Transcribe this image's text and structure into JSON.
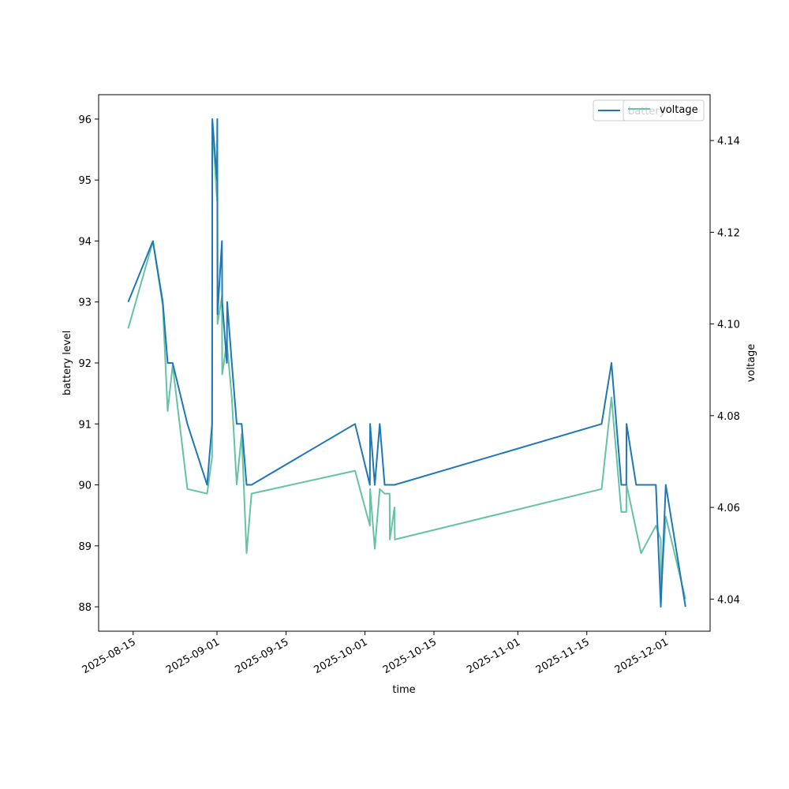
{
  "chart_data": {
    "type": "line",
    "title": "",
    "xlabel": "time",
    "ylabel": "battery level",
    "ylabel_right": "voltage",
    "x_tick_labels": [
      "2025-08-15",
      "2025-09-01",
      "2025-09-15",
      "2025-10-01",
      "2025-10-15",
      "2025-11-01",
      "2025-11-15",
      "2025-12-01"
    ],
    "y_left_ticks": [
      "88",
      "89",
      "90",
      "91",
      "92",
      "93",
      "94",
      "95",
      "96"
    ],
    "y_right_ticks": [
      "4.04",
      "4.06",
      "4.08",
      "4.10",
      "4.12",
      "4.14"
    ],
    "xlim": [
      "2025-08-08",
      "2025-12-10"
    ],
    "ylim_left": [
      87.6,
      96.4
    ],
    "ylim_right": [
      4.033,
      4.15
    ],
    "grid": false,
    "legend_placement": "top-right",
    "series": [
      {
        "name": "battery",
        "axis": "left",
        "color": "#1f77b4",
        "points": [
          [
            "2025-08-14",
            93.0
          ],
          [
            "2025-08-19",
            94.0
          ],
          [
            "2025-08-21",
            93.0
          ],
          [
            "2025-08-22",
            92.0
          ],
          [
            "2025-08-23",
            92.0
          ],
          [
            "2025-08-26",
            91.0
          ],
          [
            "2025-08-30",
            90.0
          ],
          [
            "2025-08-31",
            91.0
          ],
          [
            "2025-08-31",
            96.0
          ],
          [
            "2025-09-01",
            95.0
          ],
          [
            "2025-09-01",
            96.0
          ],
          [
            "2025-09-01",
            92.8
          ],
          [
            "2025-09-02",
            94.0
          ],
          [
            "2025-09-02",
            93.0
          ],
          [
            "2025-09-03",
            92.0
          ],
          [
            "2025-09-03",
            93.0
          ],
          [
            "2025-09-04",
            92.0
          ],
          [
            "2025-09-05",
            91.0
          ],
          [
            "2025-09-06",
            91.0
          ],
          [
            "2025-09-07",
            90.0
          ],
          [
            "2025-09-08",
            90.0
          ],
          [
            "2025-09-29",
            91.0
          ],
          [
            "2025-10-02",
            90.0
          ],
          [
            "2025-10-02",
            91.0
          ],
          [
            "2025-10-03",
            90.0
          ],
          [
            "2025-10-04",
            91.0
          ],
          [
            "2025-10-05",
            90.0
          ],
          [
            "2025-10-07",
            90.0
          ],
          [
            "2025-11-18",
            91.0
          ],
          [
            "2025-11-20",
            92.0
          ],
          [
            "2025-11-22",
            90.0
          ],
          [
            "2025-11-23",
            90.0
          ],
          [
            "2025-11-23",
            91.0
          ],
          [
            "2025-11-25",
            90.0
          ],
          [
            "2025-11-29",
            90.0
          ],
          [
            "2025-11-30",
            88.0
          ],
          [
            "2025-12-01",
            90.0
          ],
          [
            "2025-12-05",
            88.0
          ]
        ]
      },
      {
        "name": "voltage",
        "axis": "right",
        "color": "#66c2a5",
        "points": [
          [
            "2025-08-14",
            4.099
          ],
          [
            "2025-08-19",
            4.118
          ],
          [
            "2025-08-21",
            4.104
          ],
          [
            "2025-08-22",
            4.081
          ],
          [
            "2025-08-23",
            4.091
          ],
          [
            "2025-08-26",
            4.064
          ],
          [
            "2025-08-30",
            4.063
          ],
          [
            "2025-08-31",
            4.071
          ],
          [
            "2025-08-31",
            4.144
          ],
          [
            "2025-09-01",
            4.127
          ],
          [
            "2025-09-01",
            4.137
          ],
          [
            "2025-09-01",
            4.1
          ],
          [
            "2025-09-02",
            4.106
          ],
          [
            "2025-09-02",
            4.089
          ],
          [
            "2025-09-03",
            4.096
          ],
          [
            "2025-09-04",
            4.084
          ],
          [
            "2025-09-05",
            4.065
          ],
          [
            "2025-09-06",
            4.076
          ],
          [
            "2025-09-07",
            4.05
          ],
          [
            "2025-09-08",
            4.063
          ],
          [
            "2025-09-29",
            4.068
          ],
          [
            "2025-10-02",
            4.056
          ],
          [
            "2025-10-02",
            4.064
          ],
          [
            "2025-10-03",
            4.051
          ],
          [
            "2025-10-04",
            4.064
          ],
          [
            "2025-10-05",
            4.063
          ],
          [
            "2025-10-06",
            4.063
          ],
          [
            "2025-10-06",
            4.053
          ],
          [
            "2025-10-07",
            4.06
          ],
          [
            "2025-10-07",
            4.053
          ],
          [
            "2025-11-18",
            4.064
          ],
          [
            "2025-11-20",
            4.084
          ],
          [
            "2025-11-22",
            4.059
          ],
          [
            "2025-11-23",
            4.059
          ],
          [
            "2025-11-23",
            4.065
          ],
          [
            "2025-11-26",
            4.05
          ],
          [
            "2025-11-29",
            4.056
          ],
          [
            "2025-11-30",
            4.053
          ],
          [
            "2025-11-30",
            4.042
          ],
          [
            "2025-12-01",
            4.058
          ],
          [
            "2025-12-05",
            4.04
          ]
        ]
      }
    ]
  }
}
